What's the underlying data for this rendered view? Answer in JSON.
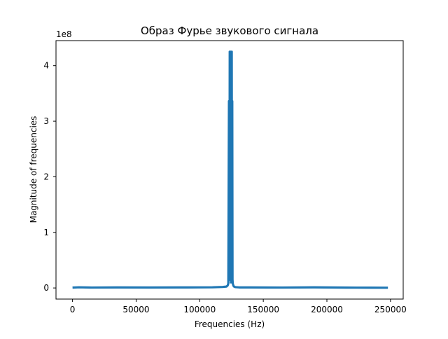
{
  "chart_data": {
    "type": "line",
    "title": "Образ Фурье звукового сигнала",
    "xlabel": "Frequencies (Hz)",
    "ylabel": "Magnitude of frequencies",
    "y_scale_label": "1e8",
    "y_multiplier": 100000000,
    "xlim": [
      -13000,
      260000
    ],
    "ylim": [
      -20000000,
      445000000
    ],
    "x_ticks": [
      0,
      50000,
      100000,
      150000,
      200000,
      250000
    ],
    "x_tick_labels": [
      "0",
      "50000",
      "100000",
      "150000",
      "200000",
      "250000"
    ],
    "y_ticks": [
      0,
      100000000,
      200000000,
      300000000,
      400000000
    ],
    "y_tick_labels": [
      "0",
      "1",
      "2",
      "3",
      "4"
    ],
    "grid": false,
    "series_color": "#1f77b4",
    "series": [
      {
        "x": [
          0,
          5000,
          15000,
          35000,
          60000,
          90000,
          110000,
          118000,
          121000,
          122000,
          122500,
          123000,
          123400,
          123600,
          123800,
          124000,
          124200,
          124400,
          124600,
          124800,
          125000,
          125200,
          125400,
          125600,
          125800,
          126000,
          126500,
          127000,
          128000,
          131000,
          140000,
          165000,
          190000,
          215000,
          235000,
          248000
        ],
        "y": [
          600000,
          1200000,
          700000,
          900000,
          800000,
          1000000,
          1200000,
          1800000,
          2500000,
          4500000,
          8000000,
          336000000,
          15000000,
          425000000,
          20000000,
          330000000,
          60000000,
          425000000,
          10000000,
          336000000,
          90000000,
          425000000,
          40000000,
          336000000,
          15000000,
          8000000,
          4000000,
          2500000,
          1500000,
          1000000,
          900000,
          700000,
          1100000,
          600000,
          500000,
          400000
        ]
      }
    ]
  }
}
